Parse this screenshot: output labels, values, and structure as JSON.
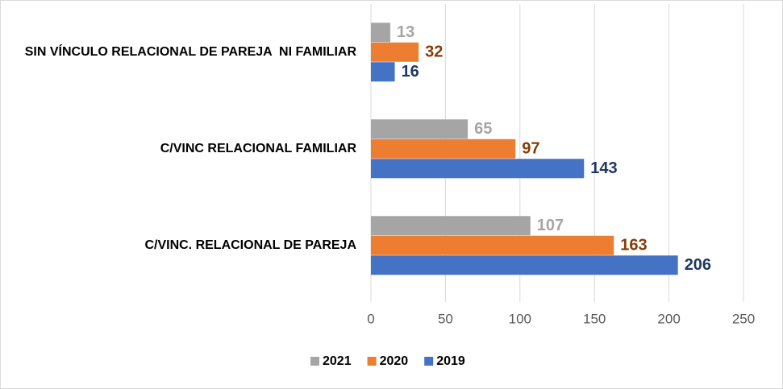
{
  "chart_data": {
    "type": "barh",
    "categories": [
      "SIN VÍNCULO RELACIONAL DE PAREJA  NI FAMILIAR",
      "C/VINC RELACIONAL FAMILIAR",
      "C/VINC. RELACIONAL DE PAREJA"
    ],
    "series": [
      {
        "name": "2021",
        "color": "#a5a5a5",
        "label_color": "#a5a5a5",
        "values": [
          13,
          65,
          107
        ]
      },
      {
        "name": "2020",
        "color": "#ed7d31",
        "label_color": "#843c0c",
        "values": [
          32,
          97,
          163
        ]
      },
      {
        "name": "2019",
        "color": "#4472c4",
        "label_color": "#203864",
        "values": [
          16,
          143,
          206
        ]
      }
    ],
    "xlim": [
      0,
      250
    ],
    "xticks": [
      0,
      50,
      100,
      150,
      200,
      250
    ],
    "grid": true,
    "legend": "bottom"
  }
}
